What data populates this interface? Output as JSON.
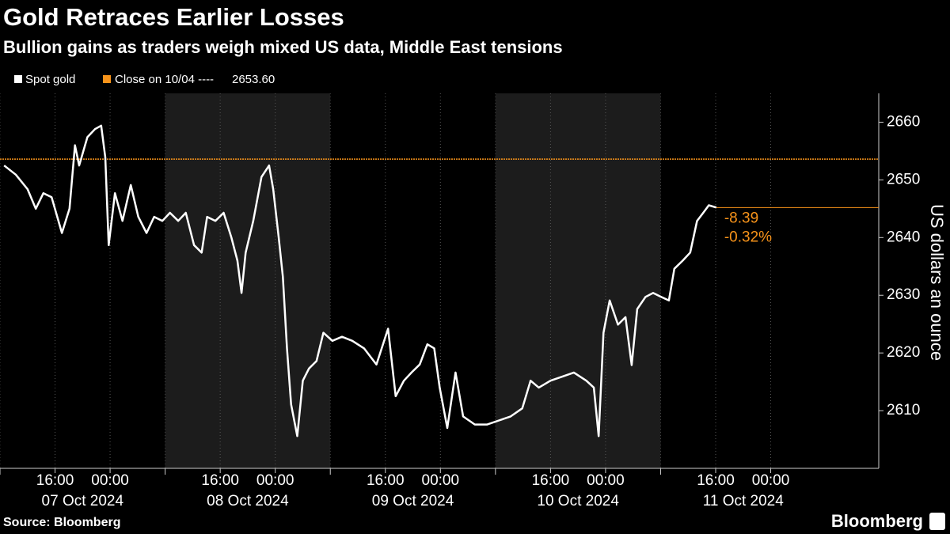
{
  "chart_data": {
    "type": "line",
    "title": "Gold Retraces Earlier Losses",
    "subtitle": "Bullion gains as traders weigh mixed US data, Middle East tensions",
    "y_label": "US dollars an ounce",
    "source": "Source: Bloomberg",
    "brand": "Bloomberg",
    "series": [
      {
        "name": "Spot gold",
        "color": "#ffffff",
        "x": [
          0.6,
          2.3,
          4.0,
          5.2,
          6.3,
          7.5,
          9.0,
          10.1,
          10.9,
          11.5,
          12.7,
          13.8,
          14.7,
          15.3,
          15.8,
          16.7,
          17.8,
          19.0,
          20.1,
          21.3,
          22.4,
          23.6,
          24.7,
          25.9,
          27.0,
          28.2,
          29.3,
          30.1,
          31.3,
          32.5,
          33.6,
          34.5,
          35.1,
          35.7,
          36.8,
          38.0,
          39.1,
          39.7,
          40.5,
          41.1,
          41.7,
          42.3,
          43.2,
          44.0,
          44.9,
          46.0,
          47.0,
          48.3,
          49.7,
          51.2,
          52.9,
          54.7,
          56.4,
          57.5,
          58.7,
          59.8,
          61.0,
          62.1,
          63.1,
          63.9,
          65.0,
          66.2,
          67.3,
          69.0,
          70.8,
          72.5,
          74.2,
          75.9,
          77.1,
          78.3,
          80.0,
          81.7,
          83.4,
          85.2,
          86.3,
          87.0,
          87.7,
          88.6,
          89.8,
          90.9,
          91.8,
          92.6,
          93.8,
          94.9,
          96.1,
          97.2,
          98.0,
          99.2,
          100.3,
          101.3,
          102.2,
          103.0,
          104.1
        ],
        "values": [
          2652.5,
          2650.9,
          2648.4,
          2645,
          2647.7,
          2647,
          2640.8,
          2645,
          2656,
          2652.5,
          2657.4,
          2658.8,
          2659.4,
          2653.9,
          2638.7,
          2647.7,
          2642.9,
          2649.1,
          2643.6,
          2640.8,
          2643.6,
          2642.9,
          2644.3,
          2642.9,
          2644.3,
          2638.7,
          2637.4,
          2643.6,
          2642.9,
          2644.3,
          2640.1,
          2636,
          2630.4,
          2637.4,
          2642.9,
          2650.5,
          2652.5,
          2648.4,
          2640.1,
          2633.2,
          2620.8,
          2611.1,
          2605.6,
          2615.2,
          2617.3,
          2618.6,
          2623.5,
          2622.1,
          2622.8,
          2622.1,
          2620.8,
          2618,
          2624.2,
          2612.5,
          2615.2,
          2616.6,
          2618,
          2621.5,
          2620.8,
          2614,
          2607,
          2616.6,
          2609,
          2607.6,
          2607.6,
          2608.3,
          2609,
          2610.4,
          2615.2,
          2614,
          2615.2,
          2615.9,
          2616.6,
          2615.2,
          2614,
          2605.6,
          2623.5,
          2629.1,
          2624.9,
          2626.2,
          2617.9,
          2627.6,
          2629.7,
          2630.4,
          2629.7,
          2629.1,
          2634.6,
          2636,
          2637.4,
          2642.9,
          2644.3,
          2645.6,
          2645.21
        ]
      }
    ],
    "reference_line": {
      "name": "Close on 10/04 ----",
      "value": 2653.6,
      "label": "2653.60",
      "color": "#f7931a"
    },
    "annotations": [
      {
        "value": -8.39
      },
      {
        "value": -0.32,
        "label": "-0.32%"
      }
    ],
    "xlim": [
      0,
      127.7
    ],
    "xticks": [
      {
        "value": 8,
        "label": "16:00"
      },
      {
        "value": 16,
        "label": "00:00"
      },
      {
        "value": 32,
        "label": "16:00"
      },
      {
        "value": 40,
        "label": "00:00"
      },
      {
        "value": 56,
        "label": "16:00"
      },
      {
        "value": 64,
        "label": "00:00"
      },
      {
        "value": 80,
        "label": "16:00"
      },
      {
        "value": 88,
        "label": "00:00"
      },
      {
        "value": 104,
        "label": "16:00"
      },
      {
        "value": 112,
        "label": "00:00"
      }
    ],
    "days": [
      {
        "label": "07 Oct 2024",
        "start": 0,
        "end": 24,
        "shaded": false
      },
      {
        "label": "08 Oct 2024",
        "start": 24,
        "end": 48,
        "shaded": true
      },
      {
        "label": "09 Oct 2024",
        "start": 48,
        "end": 72,
        "shaded": false
      },
      {
        "label": "10 Oct 2024",
        "start": 72,
        "end": 96,
        "shaded": true
      },
      {
        "label": "11 Oct 2024",
        "start": 96,
        "end": 120,
        "shaded": false
      }
    ],
    "ylim": [
      2600,
      2665
    ],
    "yticks": [
      2610,
      2620,
      2630,
      2640,
      2650,
      2660
    ]
  }
}
